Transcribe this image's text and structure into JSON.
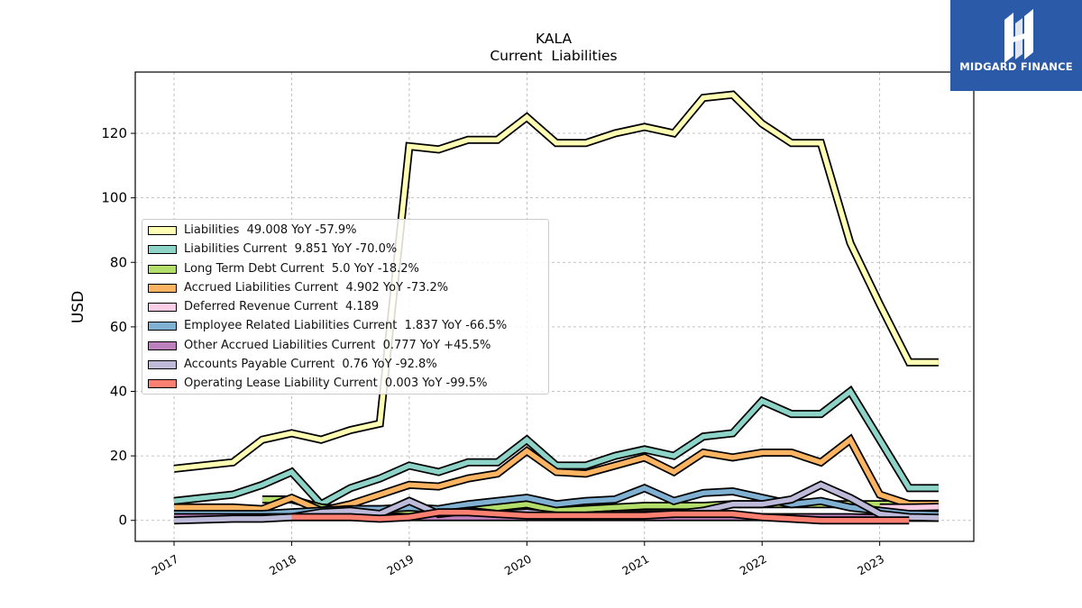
{
  "chart_data": {
    "type": "line",
    "title": "KALA",
    "subtitle": "Current  Liabilities",
    "ylabel": "USD",
    "xlabel": "",
    "ylim": [
      -6.5,
      139
    ],
    "xlim": [
      2016.67,
      2023.8
    ],
    "y_ticks": [
      0,
      20,
      40,
      60,
      80,
      100,
      120
    ],
    "x_ticks": [
      2017,
      2018,
      2019,
      2020,
      2021,
      2022,
      2023
    ],
    "grid": true,
    "legend_position": "center-left",
    "series": [
      {
        "name": "Liabilities",
        "legend": "Liabilities  49.008 YoY -57.9%",
        "color": "#ffffb3",
        "x": [
          2017.0,
          2017.5,
          2017.75,
          2018.0,
          2018.25,
          2018.5,
          2018.75,
          2019.0,
          2019.25,
          2019.5,
          2019.75,
          2020.0,
          2020.25,
          2020.5,
          2020.75,
          2021.0,
          2021.25,
          2021.5,
          2021.75,
          2022.0,
          2022.25,
          2022.5,
          2022.75,
          2023.0,
          2023.25,
          2023.5
        ],
        "y": [
          16,
          18,
          25,
          27,
          25,
          28,
          30,
          116,
          115,
          118,
          118,
          125,
          117,
          117,
          120,
          122,
          120,
          131,
          132,
          123,
          117,
          117,
          86,
          67,
          49,
          49
        ]
      },
      {
        "name": "Liabilities Current",
        "legend": "Liabilities Current  9.851 YoY -70.0%",
        "color": "#8dd3c7",
        "x": [
          2017.0,
          2017.5,
          2017.75,
          2018.0,
          2018.25,
          2018.5,
          2018.75,
          2019.0,
          2019.25,
          2019.5,
          2019.75,
          2020.0,
          2020.25,
          2020.5,
          2020.75,
          2021.0,
          2021.25,
          2021.5,
          2021.75,
          2022.0,
          2022.25,
          2022.5,
          2022.75,
          2023.0,
          2023.25,
          2023.5
        ],
        "y": [
          6,
          8,
          11,
          15,
          5,
          10,
          13,
          17,
          15,
          18,
          18,
          25,
          17,
          17,
          20,
          22,
          20,
          26,
          27,
          37,
          33,
          33,
          40,
          25,
          10,
          10
        ]
      },
      {
        "name": "Long Term Debt Current",
        "legend": "Long Term Debt Current  5.0 YoY -18.2%",
        "color": "#b3de69",
        "x": [
          2017.75,
          2018.0,
          2018.25,
          2018.5,
          2018.75,
          2019.0,
          2019.25,
          2019.5,
          2019.75,
          2020.0,
          2020.25,
          2020.5,
          2020.75,
          2021.0,
          2021.25,
          2021.5,
          2021.75,
          2022.0,
          2022.25,
          2022.5,
          2022.75,
          2023.0,
          2023.25,
          2023.5
        ],
        "y": [
          6.5,
          6.5,
          4,
          3.5,
          3.5,
          3,
          3,
          3.5,
          4,
          5,
          3,
          3.5,
          4,
          4.5,
          4.5,
          4.5,
          5,
          5,
          5,
          5,
          5,
          5,
          5,
          5
        ]
      },
      {
        "name": "Accrued Liabilities Current",
        "legend": "Accrued Liabilities Current  4.902 YoY -73.2%",
        "color": "#fdb462",
        "x": [
          2017.0,
          2017.5,
          2017.75,
          2018.0,
          2018.25,
          2018.5,
          2018.75,
          2019.0,
          2019.25,
          2019.5,
          2019.75,
          2020.0,
          2020.25,
          2020.5,
          2020.75,
          2021.0,
          2021.25,
          2021.5,
          2021.75,
          2022.0,
          2022.25,
          2022.5,
          2022.75,
          2023.0,
          2023.25,
          2023.5
        ],
        "y": [
          4,
          4,
          3.5,
          7,
          3,
          5,
          8,
          11,
          10.5,
          13,
          14.5,
          21.5,
          15,
          14.5,
          17,
          19.5,
          15,
          21,
          19.5,
          21,
          21,
          18,
          25,
          8,
          5,
          5
        ]
      },
      {
        "name": "Deferred Revenue Current",
        "legend": "Deferred Revenue Current  4.189",
        "color": "#fccde5",
        "x": [
          2023.0,
          2023.25,
          2023.5
        ],
        "y": [
          4,
          4,
          4.2
        ]
      },
      {
        "name": "Employee Related Liabilities Current",
        "legend": "Employee Related Liabilities Current  1.837 YoY -66.5%",
        "color": "#80b1d3",
        "x": [
          2017.0,
          2017.5,
          2017.75,
          2018.0,
          2018.25,
          2018.5,
          2018.75,
          2019.0,
          2019.25,
          2019.5,
          2019.75,
          2020.0,
          2020.25,
          2020.5,
          2020.75,
          2021.0,
          2021.25,
          2021.5,
          2021.75,
          2022.0,
          2022.25,
          2022.5,
          2022.75,
          2023.0,
          2023.25,
          2023.5
        ],
        "y": [
          2,
          2,
          2,
          2.5,
          3,
          3.5,
          3.5,
          4,
          3.5,
          5,
          6,
          7,
          5,
          6,
          6.5,
          10,
          6,
          8.5,
          9,
          7,
          5,
          6,
          4,
          3,
          2,
          1.8
        ]
      },
      {
        "name": "Other Accrued Liabilities Current",
        "legend": "Other Accrued Liabilities Current  0.777 YoY +45.5%",
        "color": "#bc80bd",
        "x": [
          2017.0,
          2017.5,
          2017.75,
          2018.0,
          2018.25,
          2018.5,
          2018.75,
          2019.0,
          2019.25,
          2019.5,
          2019.75,
          2020.0,
          2020.25,
          2020.5,
          2020.75,
          2021.0,
          2021.25,
          2021.5,
          2021.75,
          2022.0,
          2022.25,
          2022.5,
          2022.75,
          2023.0,
          2023.25,
          2023.5
        ],
        "y": [
          1,
          1,
          1,
          1,
          1,
          1,
          1,
          1,
          1,
          1,
          1,
          1,
          1,
          1,
          1,
          1,
          1,
          1,
          1,
          1,
          1,
          1,
          1,
          0.8,
          0.8,
          0.8
        ]
      },
      {
        "name": "Accounts Payable Current",
        "legend": "Accounts Payable Current  0.76 YoY -92.8%",
        "color": "#bebada",
        "x": [
          2017.0,
          2017.5,
          2017.75,
          2018.0,
          2018.25,
          2018.5,
          2018.75,
          2019.0,
          2019.25,
          2019.5,
          2019.75,
          2020.0,
          2020.25,
          2020.5,
          2020.75,
          2021.0,
          2021.25,
          2021.5,
          2021.75,
          2022.0,
          2022.25,
          2022.5,
          2022.75,
          2023.0,
          2023.25,
          2023.5
        ],
        "y": [
          0,
          0.5,
          0.5,
          1,
          2.5,
          3,
          2,
          6,
          2,
          3,
          2,
          2.5,
          1.5,
          1.5,
          2,
          2,
          2,
          3,
          5,
          5,
          6.5,
          11,
          7,
          2,
          1,
          0.8
        ]
      },
      {
        "name": "Operating Lease Liability Current",
        "legend": "Operating Lease Liability Current  0.003 YoY -99.5%",
        "color": "#fb8072",
        "x": [
          2018.0,
          2018.25,
          2018.5,
          2018.75,
          2019.0,
          2019.25,
          2019.5,
          2019.75,
          2020.0,
          2020.25,
          2020.5,
          2020.75,
          2021.0,
          2021.25,
          2021.5,
          2021.75,
          2022.0,
          2022.25,
          2022.5,
          2022.75,
          2023.0,
          2023.25
        ],
        "y": [
          1,
          1,
          1,
          0.5,
          1,
          2.5,
          2.5,
          2,
          1.5,
          1.5,
          1.5,
          1.5,
          1.5,
          2,
          2,
          2,
          1,
          0.5,
          0,
          0,
          0,
          0
        ]
      }
    ]
  },
  "logo": {
    "text": "MIDGARD FINANCE",
    "icon": "midgard-logo-icon",
    "bg_color": "#2a5aa8"
  }
}
